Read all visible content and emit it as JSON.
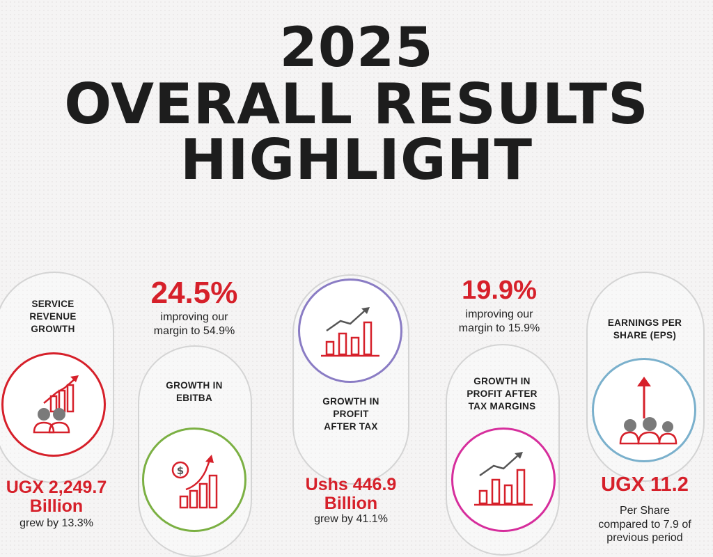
{
  "title": {
    "line1": "2025",
    "line2": "OVERALL RESULTS",
    "line3": "HIGHLIGHT"
  },
  "accent_color": "#d6202a",
  "cards": {
    "service": {
      "label": "SERVICE\nREVENUE\nGROWTH",
      "value_line1": "UGX 2,249.7",
      "value_line2": "Billion",
      "detail": "grew by 13.3%",
      "icon": "people-growth-chart-icon",
      "ring_color": "#d6202a"
    },
    "ebitba": {
      "headline": "24.5%",
      "headline_detail": "improving our\nmargin to 54.9%",
      "label": "GROWTH IN\nEBITBA",
      "icon": "dollar-growth-chart-icon",
      "ring_color": "#7bb043"
    },
    "pat": {
      "label": "GROWTH IN\nPROFIT\nAFTER TAX",
      "value_line1": "Ushs 446.9",
      "value_line2": "Billion",
      "detail": "grew by 41.1%",
      "icon": "bar-line-chart-icon",
      "ring_color": "#8a7cc4"
    },
    "pat_margin": {
      "headline": "19.9%",
      "headline_detail": "improving our\nmargin to 15.9%",
      "label": "GROWTH IN\nPROFIT AFTER\nTAX MARGINS",
      "icon": "bar-line-chart-icon",
      "ring_color": "#d62e9c"
    },
    "eps": {
      "label": "EARNINGS PER\nSHARE (EPS)",
      "value": "UGX 11.2",
      "detail": "Per Share\ncompared to 7.9 of\nprevious period",
      "icon": "people-arrow-up-icon",
      "ring_color": "#7ab0cc"
    }
  }
}
